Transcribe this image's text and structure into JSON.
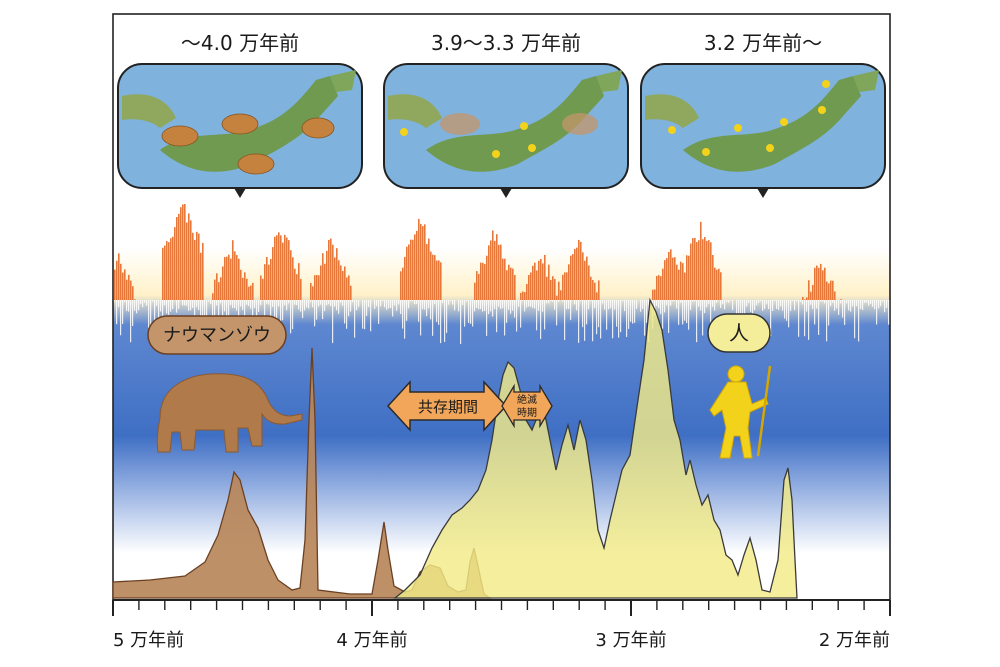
{
  "period_labels": [
    "～4.0 万年前",
    "3.9～3.3 万年前",
    "3.2 万年前～"
  ],
  "species": {
    "elephant": "ナウマンゾウ",
    "human": "人"
  },
  "phases": {
    "coexistence": "共存期間",
    "extinction_line1": "絶滅",
    "extinction_line2": "時期"
  },
  "time_axis": {
    "tick_labels": [
      "5 万年前",
      "4 万年前",
      "3 万年前",
      "2 万年前"
    ]
  },
  "colors": {
    "warm": "#e8773a",
    "cold": "#3f6fc4",
    "elephant": "#b07a4a",
    "human": "#f2ea88",
    "human_figure": "#f3d21b"
  }
}
